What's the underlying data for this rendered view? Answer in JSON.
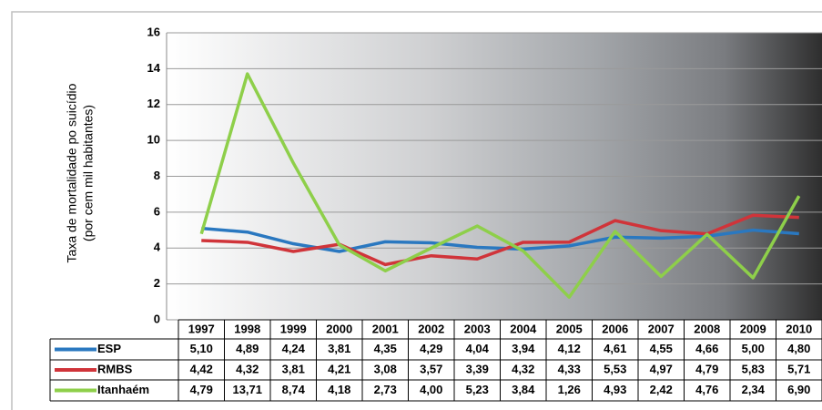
{
  "chart_data": {
    "type": "line",
    "y_label": [
      "Taxa de mortalidade po suicídio",
      "(por cem mil habitantes)"
    ],
    "categories": [
      "1997",
      "1998",
      "1999",
      "2000",
      "2001",
      "2002",
      "2003",
      "2004",
      "2005",
      "2006",
      "2007",
      "2008",
      "2009",
      "2010"
    ],
    "ylim": [
      0,
      16
    ],
    "yticks": [
      0,
      2,
      4,
      6,
      8,
      10,
      12,
      14,
      16
    ],
    "grid": true,
    "series": [
      {
        "name": "ESP",
        "color": "#2a78c0",
        "values": [
          5.1,
          4.89,
          4.24,
          3.81,
          4.35,
          4.29,
          4.04,
          3.94,
          4.12,
          4.61,
          4.55,
          4.66,
          5.0,
          4.8
        ],
        "value_labels": [
          "5,10",
          "4,89",
          "4,24",
          "3,81",
          "4,35",
          "4,29",
          "4,04",
          "3,94",
          "4,12",
          "4,61",
          "4,55",
          "4,66",
          "5,00",
          "4,80"
        ]
      },
      {
        "name": "RMBS",
        "color": "#d0343a",
        "values": [
          4.42,
          4.32,
          3.81,
          4.21,
          3.08,
          3.57,
          3.39,
          4.32,
          4.33,
          5.53,
          4.97,
          4.79,
          5.83,
          5.71
        ],
        "value_labels": [
          "4,42",
          "4,32",
          "3,81",
          "4,21",
          "3,08",
          "3,57",
          "3,39",
          "4,32",
          "4,33",
          "5,53",
          "4,97",
          "4,79",
          "5,83",
          "5,71"
        ]
      },
      {
        "name": "Itanhaém",
        "color": "#8ecf4a",
        "values": [
          4.79,
          13.71,
          8.74,
          4.18,
          2.73,
          4.0,
          5.23,
          3.84,
          1.26,
          4.93,
          2.42,
          4.76,
          2.34,
          6.9
        ],
        "value_labels": [
          "4,79",
          "13,71",
          "8,74",
          "4,18",
          "2,73",
          "4,00",
          "5,23",
          "3,84",
          "1,26",
          "4,93",
          "2,42",
          "4,76",
          "2,34",
          "6,90"
        ]
      }
    ]
  }
}
